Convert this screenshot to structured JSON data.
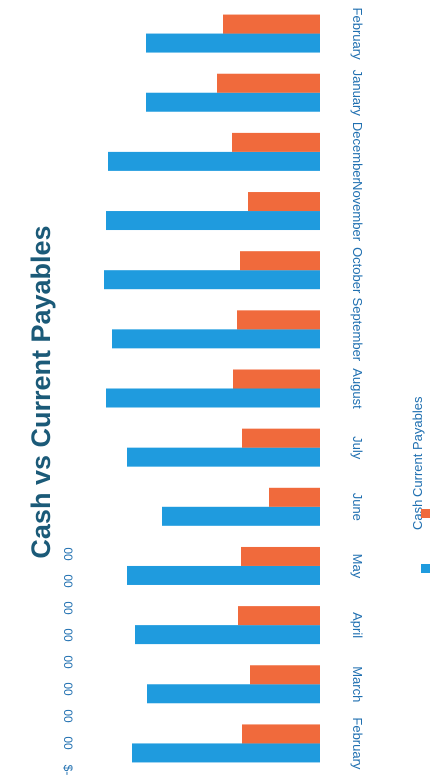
{
  "colors": {
    "cash": "#1F9BDE",
    "current_payables": "#F06A3C",
    "title": "#1B5A78",
    "axis_text": "#1F6FB0"
  },
  "chart_data": {
    "type": "bar",
    "orientation": "horizontal",
    "title": "Cash vs Current Payables",
    "categories": [
      "February",
      "March",
      "April",
      "May",
      "June",
      "July",
      "August",
      "September",
      "October",
      "November",
      "December",
      "January",
      "February"
    ],
    "series": [
      {
        "name": "Cash",
        "values": [
          188,
          173,
          185,
          193,
          158,
          193,
          214,
          208,
          216,
          214,
          212,
          174,
          174
        ]
      },
      {
        "name": "Current Payables",
        "values": [
          78,
          70,
          82,
          79,
          51,
          78,
          87,
          83,
          80,
          72,
          88,
          103,
          97
        ]
      }
    ],
    "value_ticks": [
      "$-",
      "00",
      "00",
      "00",
      "00",
      "00",
      "00",
      "00",
      "00"
    ],
    "xlim": [
      0,
      260
    ],
    "grid": false,
    "legend_position": "bottom"
  }
}
